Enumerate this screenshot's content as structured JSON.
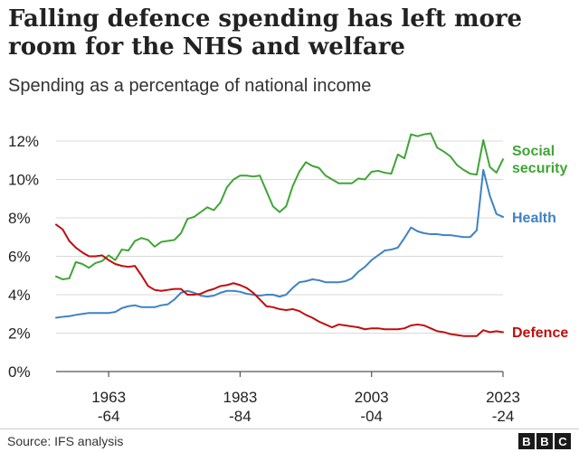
{
  "title": "Falling defence spending has left more room for the NHS and welfare",
  "subtitle": "Spending as a percentage of national income",
  "source": "Source: IFS analysis",
  "logo": [
    "B",
    "B",
    "C"
  ],
  "colors": {
    "social_security": "#3fa535",
    "health": "#3e82c4",
    "defence": "#c00d0d",
    "grid": "#d9d9d9",
    "axis": "#555555",
    "text": "#222222"
  },
  "chart_data": {
    "type": "line",
    "title": "Falling defence spending has left more room for the NHS and welfare",
    "ylabel": "Spending as a percentage of national income",
    "xlabel": "",
    "xlim": [
      1955,
      2023
    ],
    "ylim": [
      0,
      12
    ],
    "yticks": [
      0,
      2,
      4,
      6,
      8,
      10,
      12
    ],
    "ytick_labels": [
      "0%",
      "2%",
      "4%",
      "6%",
      "8%",
      "10%",
      "12%"
    ],
    "xticks": [
      {
        "value": 1963,
        "line1": "1963",
        "line2": "-64"
      },
      {
        "value": 1983,
        "line1": "1983",
        "line2": "-84"
      },
      {
        "value": 2003,
        "line1": "2003",
        "line2": "-04"
      },
      {
        "value": 2023,
        "line1": "2023",
        "line2": "-24"
      }
    ],
    "grid": true,
    "x": [
      1955,
      1956,
      1957,
      1958,
      1959,
      1960,
      1961,
      1962,
      1963,
      1964,
      1965,
      1966,
      1967,
      1968,
      1969,
      1970,
      1971,
      1972,
      1973,
      1974,
      1975,
      1976,
      1977,
      1978,
      1979,
      1980,
      1981,
      1982,
      1983,
      1984,
      1985,
      1986,
      1987,
      1988,
      1989,
      1990,
      1991,
      1992,
      1993,
      1994,
      1995,
      1996,
      1997,
      1998,
      1999,
      2000,
      2001,
      2002,
      2003,
      2004,
      2005,
      2006,
      2007,
      2008,
      2009,
      2010,
      2011,
      2012,
      2013,
      2014,
      2015,
      2016,
      2017,
      2018,
      2019,
      2020,
      2021,
      2022,
      2023
    ],
    "series": [
      {
        "name": "Social security",
        "label_lines": [
          "Social",
          "security"
        ],
        "color_key": "social_security",
        "values": [
          4.95,
          4.8,
          4.85,
          5.7,
          5.6,
          5.4,
          5.65,
          5.75,
          6.05,
          5.8,
          6.35,
          6.3,
          6.8,
          6.95,
          6.85,
          6.5,
          6.75,
          6.8,
          6.85,
          7.2,
          7.95,
          8.05,
          8.3,
          8.55,
          8.4,
          8.8,
          9.6,
          10.0,
          10.2,
          10.2,
          10.15,
          10.2,
          9.4,
          8.6,
          8.3,
          8.6,
          9.65,
          10.4,
          10.9,
          10.7,
          10.6,
          10.2,
          10.0,
          9.8,
          9.8,
          9.8,
          10.05,
          10.0,
          10.4,
          10.45,
          10.35,
          10.3,
          11.3,
          11.1,
          12.35,
          12.25,
          12.35,
          12.4,
          11.65,
          11.45,
          11.2,
          10.75,
          10.5,
          10.3,
          10.25,
          12.05,
          10.65,
          10.35,
          11.05
        ]
      },
      {
        "name": "Health",
        "label_lines": [
          "Health"
        ],
        "color_key": "health",
        "values": [
          2.8,
          2.85,
          2.88,
          2.95,
          3.0,
          3.05,
          3.05,
          3.05,
          3.05,
          3.1,
          3.3,
          3.4,
          3.45,
          3.35,
          3.35,
          3.35,
          3.45,
          3.5,
          3.75,
          4.1,
          4.2,
          4.1,
          3.95,
          3.9,
          3.95,
          4.1,
          4.2,
          4.2,
          4.15,
          4.05,
          4.0,
          3.95,
          4.0,
          4.0,
          3.9,
          4.0,
          4.35,
          4.65,
          4.7,
          4.8,
          4.75,
          4.65,
          4.65,
          4.65,
          4.7,
          4.85,
          5.2,
          5.45,
          5.8,
          6.05,
          6.3,
          6.35,
          6.45,
          6.95,
          7.5,
          7.3,
          7.2,
          7.15,
          7.15,
          7.1,
          7.1,
          7.05,
          7.0,
          7.0,
          7.35,
          10.5,
          9.15,
          8.2,
          8.05
        ]
      },
      {
        "name": "Defence",
        "label_lines": [
          "Defence"
        ],
        "color_key": "defence",
        "values": [
          7.65,
          7.4,
          6.8,
          6.45,
          6.2,
          6.0,
          6.0,
          6.05,
          5.8,
          5.6,
          5.5,
          5.45,
          5.5,
          5.0,
          4.45,
          4.25,
          4.2,
          4.25,
          4.3,
          4.3,
          4.0,
          4.0,
          4.05,
          4.2,
          4.3,
          4.45,
          4.5,
          4.6,
          4.5,
          4.35,
          4.1,
          3.75,
          3.4,
          3.35,
          3.25,
          3.2,
          3.25,
          3.15,
          2.95,
          2.8,
          2.6,
          2.45,
          2.3,
          2.45,
          2.4,
          2.35,
          2.3,
          2.2,
          2.25,
          2.25,
          2.2,
          2.2,
          2.2,
          2.25,
          2.4,
          2.45,
          2.4,
          2.25,
          2.1,
          2.05,
          1.95,
          1.9,
          1.85,
          1.85,
          1.85,
          2.15,
          2.05,
          2.1,
          2.05
        ]
      }
    ]
  }
}
